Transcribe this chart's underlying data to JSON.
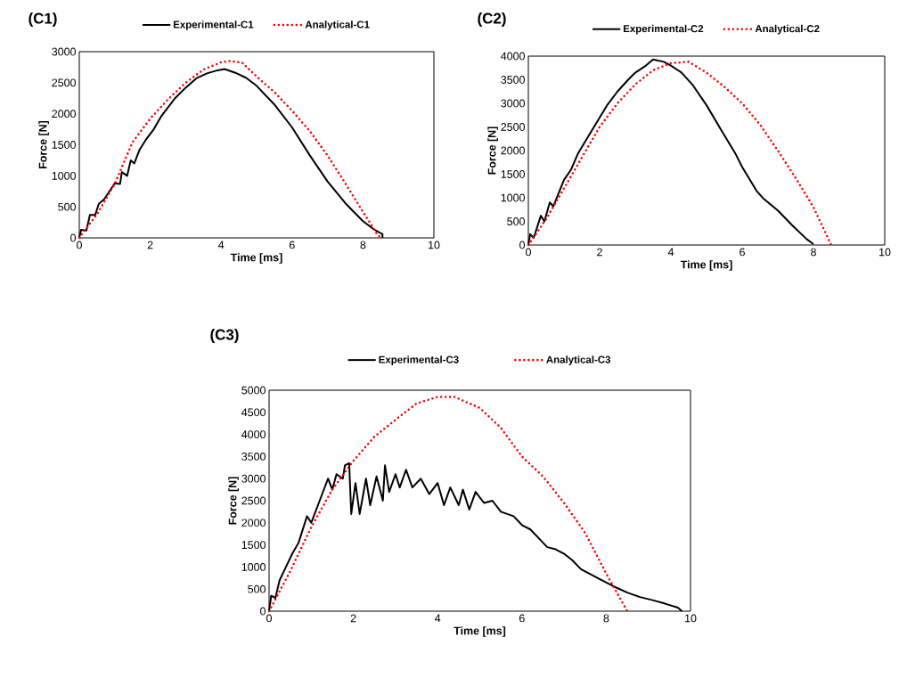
{
  "chart_data": [
    {
      "type": "line",
      "title": "(C1)",
      "xlabel": "Time [ms]",
      "ylabel": "Force [N]",
      "xlim": [
        0,
        10
      ],
      "ylim": [
        0,
        3000
      ],
      "xticks": [
        0,
        2,
        4,
        6,
        8,
        10
      ],
      "yticks": [
        0,
        500,
        1000,
        1500,
        2000,
        2500,
        3000
      ],
      "legend": "top",
      "grid": false,
      "marker": "none",
      "series": [
        {
          "name": "Experimental-C1",
          "color": "#000000",
          "line_style": "solid",
          "x": [
            0,
            0.05,
            0.2,
            0.3,
            0.45,
            0.55,
            0.7,
            0.85,
            1,
            1.15,
            1.2,
            1.35,
            1.45,
            1.55,
            1.7,
            1.9,
            2.1,
            2.3,
            2.5,
            2.7,
            3,
            3.3,
            3.6,
            3.9,
            4.1,
            4.4,
            4.7,
            5,
            5.5,
            6,
            6.5,
            7,
            7.5,
            8,
            8.3,
            8.55,
            8.55
          ],
          "values": [
            0,
            130,
            120,
            370,
            370,
            550,
            620,
            750,
            880,
            870,
            1060,
            1000,
            1250,
            1200,
            1420,
            1600,
            1750,
            1950,
            2100,
            2250,
            2420,
            2570,
            2650,
            2700,
            2720,
            2660,
            2580,
            2450,
            2150,
            1780,
            1330,
            910,
            560,
            270,
            140,
            60,
            0
          ]
        },
        {
          "name": "Analytical-C1",
          "color": "#ff0000",
          "line_style": "dotted",
          "x": [
            0,
            0.5,
            1,
            1.5,
            2,
            2.5,
            3,
            3.5,
            4,
            4.25,
            4.6,
            5,
            5.5,
            6,
            6.5,
            7,
            7.5,
            8,
            8.4,
            8.5
          ],
          "values": [
            0,
            380,
            870,
            1540,
            1920,
            2230,
            2500,
            2710,
            2830,
            2850,
            2820,
            2600,
            2350,
            2050,
            1720,
            1330,
            880,
            420,
            60,
            0
          ]
        }
      ]
    },
    {
      "type": "line",
      "title": "(C2)",
      "xlabel": "Time [ms]",
      "ylabel": "Force [N]",
      "xlim": [
        0,
        10
      ],
      "ylim": [
        0,
        4000
      ],
      "xticks": [
        0,
        2,
        4,
        6,
        8,
        10
      ],
      "yticks": [
        0,
        500,
        1000,
        1500,
        2000,
        2500,
        3000,
        3500,
        4000
      ],
      "legend": "top",
      "grid": false,
      "marker": "none",
      "series": [
        {
          "name": "Experimental-C2",
          "color": "#000000",
          "line_style": "solid",
          "x": [
            0,
            0.05,
            0.15,
            0.35,
            0.45,
            0.6,
            0.7,
            0.85,
            1,
            1.2,
            1.4,
            1.6,
            1.8,
            2,
            2.2,
            2.5,
            2.8,
            3,
            3.3,
            3.5,
            3.8,
            4,
            4.3,
            4.6,
            5,
            5.4,
            5.8,
            6,
            6.4,
            6.6,
            7,
            7.4,
            7.8,
            8
          ],
          "values": [
            0,
            230,
            150,
            620,
            500,
            900,
            820,
            1100,
            1380,
            1600,
            1950,
            2200,
            2450,
            2700,
            2950,
            3250,
            3500,
            3650,
            3800,
            3930,
            3880,
            3800,
            3650,
            3400,
            2960,
            2450,
            1950,
            1650,
            1150,
            980,
            730,
            420,
            130,
            20
          ]
        },
        {
          "name": "Analytical-C2",
          "color": "#ff0000",
          "line_style": "dotted",
          "x": [
            0,
            0.5,
            1,
            1.5,
            2,
            2.5,
            3,
            3.5,
            4,
            4.5,
            5,
            5.5,
            6,
            6.5,
            7,
            7.5,
            8,
            8.5
          ],
          "values": [
            0,
            550,
            1200,
            1850,
            2500,
            3000,
            3400,
            3700,
            3850,
            3880,
            3650,
            3350,
            3000,
            2550,
            2000,
            1420,
            800,
            0
          ]
        }
      ]
    },
    {
      "type": "line",
      "title": "(C3)",
      "xlabel": "Time [ms]",
      "ylabel": "Force [N]",
      "xlim": [
        0,
        10
      ],
      "ylim": [
        0,
        5000
      ],
      "xticks": [
        0,
        2,
        4,
        6,
        8,
        10
      ],
      "yticks": [
        0,
        500,
        1000,
        1500,
        2000,
        2500,
        3000,
        3500,
        4000,
        4500,
        5000
      ],
      "legend": "top",
      "grid": false,
      "marker": "none",
      "series": [
        {
          "name": "Experimental-C3",
          "color": "#000000",
          "line_style": "solid",
          "x": [
            0,
            0.05,
            0.15,
            0.25,
            0.4,
            0.55,
            0.7,
            0.9,
            1,
            1.2,
            1.4,
            1.5,
            1.6,
            1.75,
            1.8,
            1.9,
            1.95,
            2.05,
            2.15,
            2.3,
            2.4,
            2.55,
            2.7,
            2.75,
            2.85,
            3,
            3.1,
            3.25,
            3.4,
            3.6,
            3.8,
            4,
            4.15,
            4.3,
            4.5,
            4.6,
            4.75,
            4.9,
            5.1,
            5.3,
            5.5,
            5.8,
            6,
            6.2,
            6.4,
            6.6,
            6.8,
            7,
            7.2,
            7.4,
            7.6,
            7.9,
            8.2,
            8.5,
            8.8,
            9.1,
            9.4,
            9.7,
            9.8
          ],
          "values": [
            0,
            350,
            300,
            700,
            1000,
            1300,
            1550,
            2150,
            2000,
            2500,
            3000,
            2750,
            3100,
            3000,
            3300,
            3350,
            2200,
            2900,
            2200,
            3000,
            2400,
            3050,
            2500,
            3300,
            2700,
            3100,
            2800,
            3200,
            2800,
            3000,
            2650,
            2900,
            2400,
            2800,
            2400,
            2750,
            2300,
            2700,
            2450,
            2500,
            2250,
            2150,
            1950,
            1850,
            1650,
            1450,
            1400,
            1300,
            1150,
            950,
            850,
            700,
            550,
            420,
            320,
            250,
            170,
            80,
            0
          ]
        },
        {
          "name": "Analytical-C3",
          "color": "#ff0000",
          "line_style": "dotted",
          "x": [
            0,
            0.5,
            1,
            1.5,
            2,
            2.5,
            3,
            3.5,
            4,
            4.4,
            5,
            5.5,
            6,
            6.5,
            7,
            7.5,
            8,
            8.5
          ],
          "values": [
            0,
            900,
            1900,
            2750,
            3400,
            3950,
            4330,
            4700,
            4850,
            4850,
            4600,
            4150,
            3500,
            3050,
            2450,
            1770,
            850,
            0
          ]
        }
      ]
    }
  ]
}
